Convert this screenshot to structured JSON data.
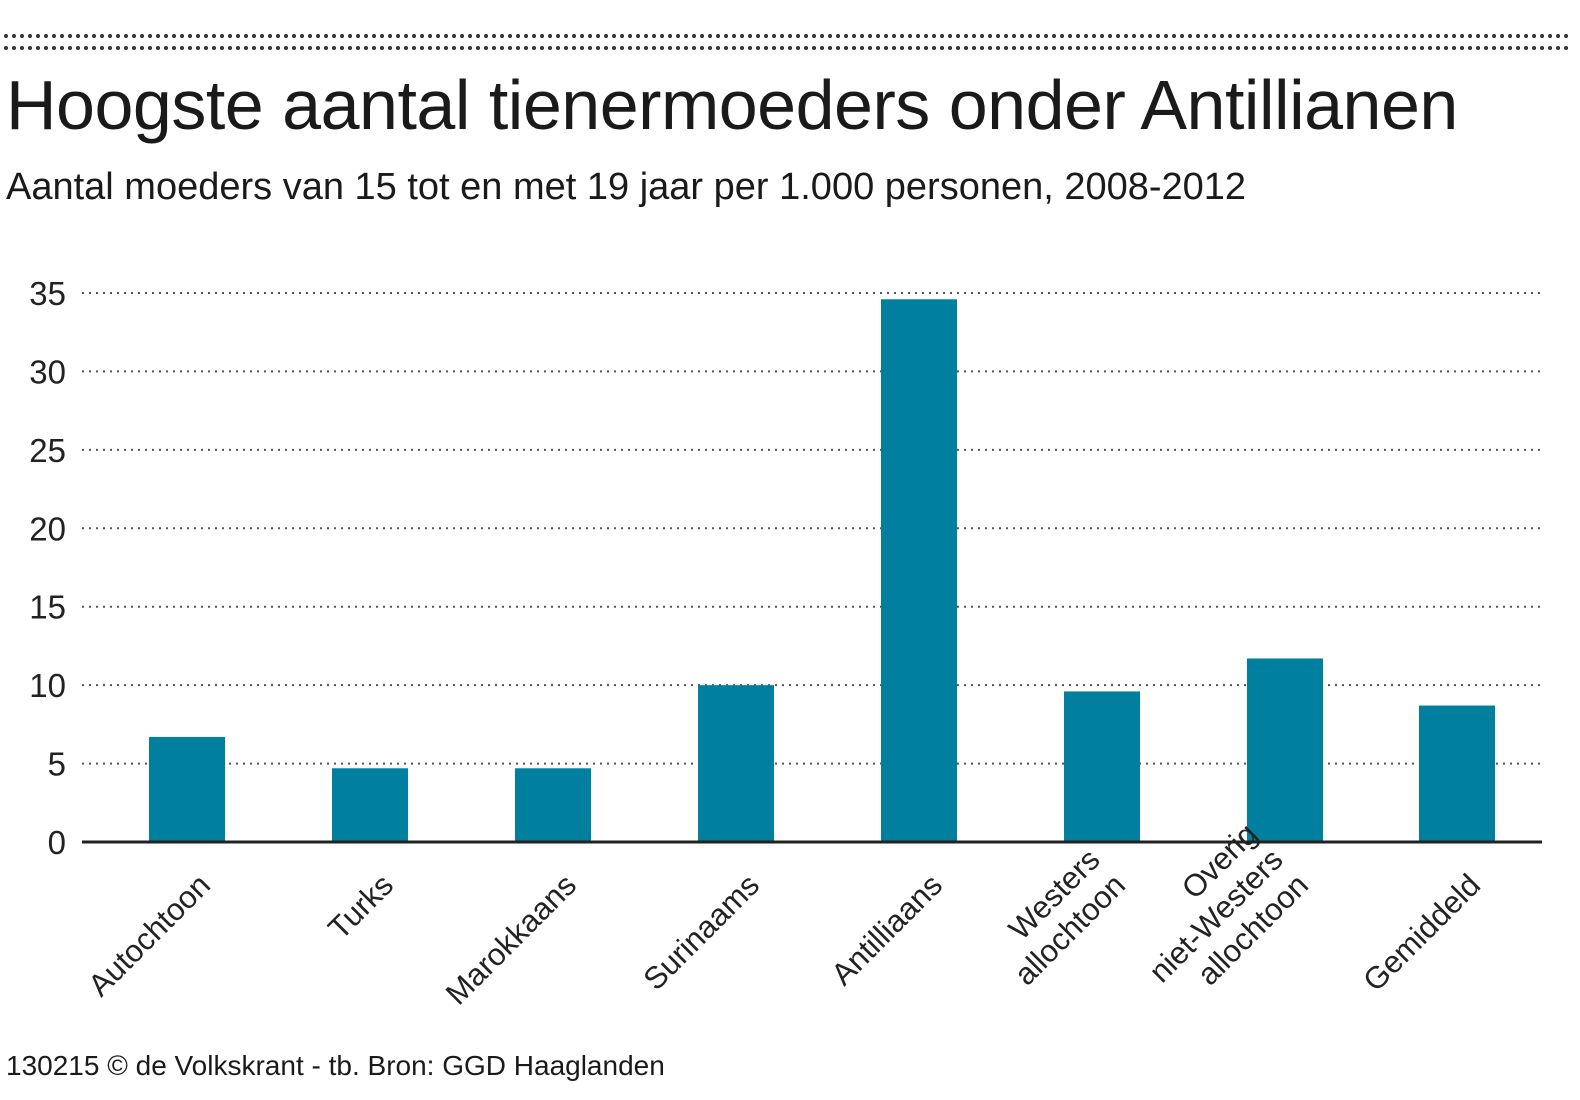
{
  "chart_data": {
    "type": "bar",
    "title": "Hoogste aantal tienermoeders onder Antillianen",
    "subtitle": "Aantal moeders van 15 tot en met 19 jaar per 1.000 personen, 2008-2012",
    "categories": [
      [
        "Autochtoon"
      ],
      [
        "Turks"
      ],
      [
        "Marokkaans"
      ],
      [
        "Surinaams"
      ],
      [
        "Antilliaans"
      ],
      [
        "Westers",
        "allochtoon"
      ],
      [
        "Overig",
        "niet-Westers",
        "allochtoon"
      ],
      [
        "Gemiddeld"
      ]
    ],
    "values": [
      6.7,
      4.7,
      4.7,
      10.0,
      34.6,
      9.6,
      11.7,
      8.7
    ],
    "ylim": [
      0,
      35
    ],
    "yticks": [
      "0",
      "5",
      "10",
      "15",
      "20",
      "25",
      "30",
      "35"
    ],
    "grid": true,
    "xlabel": "",
    "ylabel": "",
    "bar_color": "#00809e"
  },
  "footer": {
    "source": "130215 © de Volkskrant - tb. Bron: GGD Haaglanden"
  }
}
